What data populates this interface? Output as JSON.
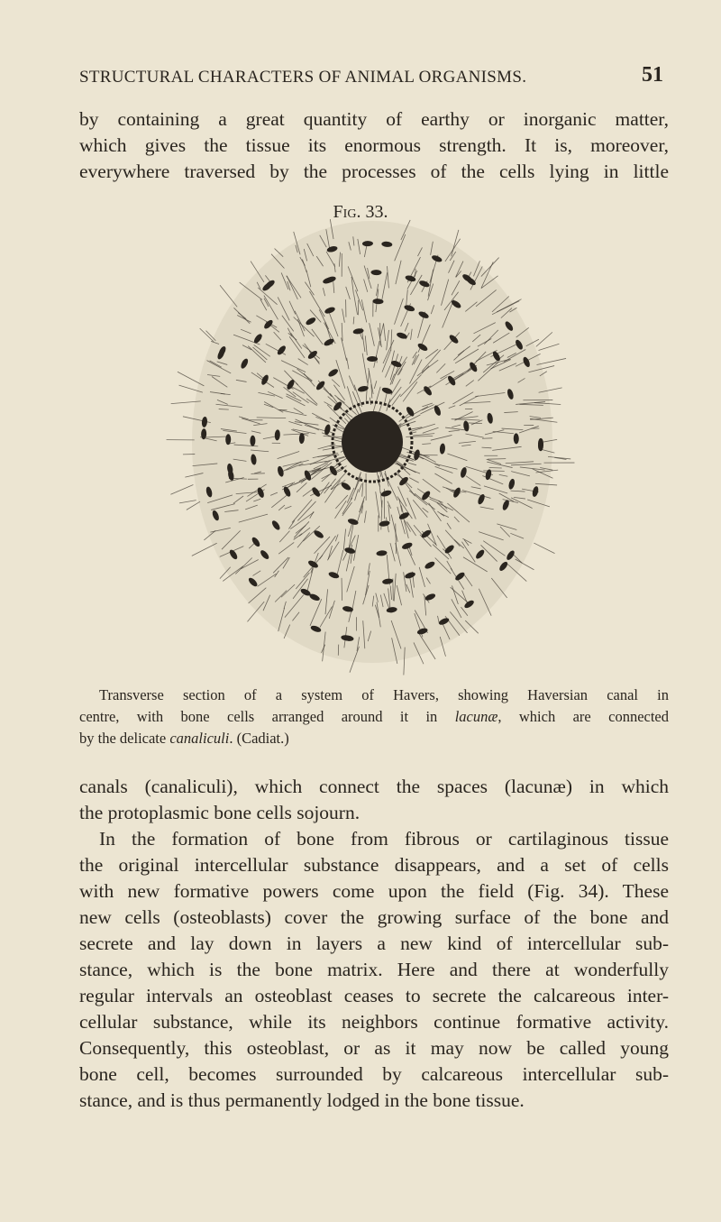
{
  "header": {
    "running_title": "STRUCTURAL CHARACTERS OF ANIMAL ORGANISMS.",
    "page_number": "51"
  },
  "paragraphs": [
    {
      "lines": [
        "by containing a great quantity of earthy or inorganic matter,",
        "which gives the tissue its enormous strength. It is, moreover,",
        "everywhere traversed by the processes of the cells lying in little"
      ]
    },
    {
      "lines": [
        "canals (canaliculi), which connect the spaces (lacunæ) in which",
        "the protoplasmic bone cells sojourn."
      ]
    },
    {
      "lines": [
        "In the formation of bone from fibrous or cartilaginous tissue",
        "the original intercellular substance disappears, and a set of cells",
        "with new formative powers come upon the field (Fig. 34). These",
        "new cells (osteoblasts) cover the growing surface of the bone and",
        "secrete and lay down in layers a new kind of intercellular sub-",
        "stance, which is the bone matrix. Here and there at wonderfully",
        "regular intervals an osteoblast ceases to secrete the calcareous inter-",
        "cellular substance, while its neighbors continue formative activity.",
        "Consequently, this osteoblast, or as it may now be called young",
        "bone cell, becomes surrounded by calcareous intercellular sub-",
        "stance, and is thus permanently lodged in the bone tissue."
      ]
    }
  ],
  "figure": {
    "label": "Fig. 33.",
    "caption_lines": [
      [
        "Transverse section of a system of Havers, showing Haversian canal in"
      ],
      [
        "centre, with bone cells arranged around it in ",
        "lacunæ",
        ", which are connected"
      ],
      [
        "by the delicate ",
        "canaliculi",
        ". (Cadiat.)"
      ]
    ]
  }
}
